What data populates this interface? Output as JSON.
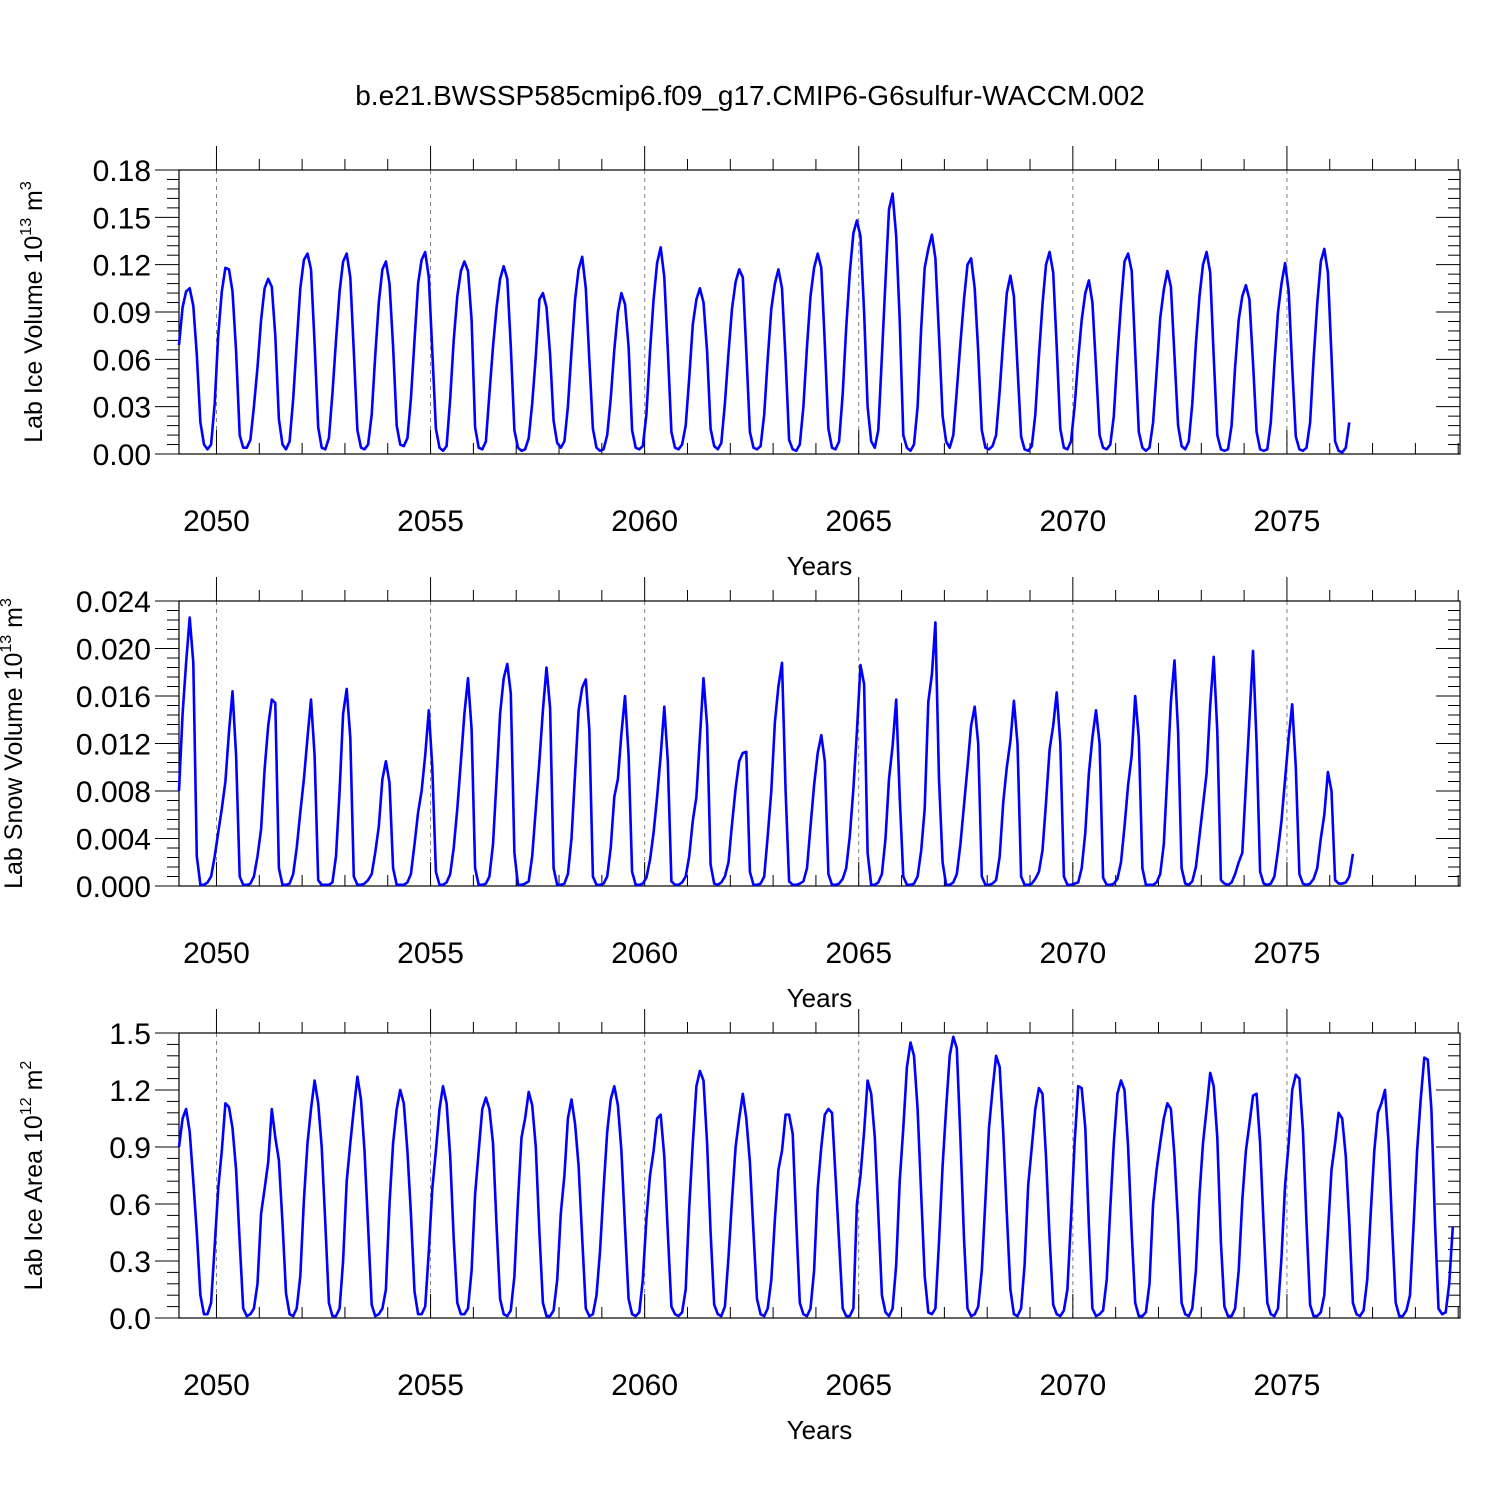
{
  "title": "b.e21.BWSSP585cmip6.f09_g17.CMIP6-G6sulfur-WACCM.002",
  "colors": {
    "line": "#0000ff",
    "axis": "#000000",
    "ref": "#808080"
  },
  "chart_data": [
    {
      "type": "line",
      "ylabel_main": "Lab Ice Volume 10",
      "ylabel_sup": "13",
      "ylabel_unit": " m",
      "ylabel_unit_sup": "3",
      "xlabel": "Years",
      "xlim": [
        2049.125,
        2079.042
      ],
      "ylim": [
        0,
        0.18
      ],
      "yticks": [
        "0.00",
        "0.03",
        "0.06",
        "0.09",
        "0.12",
        "0.15",
        "0.18"
      ],
      "ytick_values": [
        0,
        0.03,
        0.06,
        0.09,
        0.12,
        0.15,
        0.18
      ],
      "xticks": [
        "2050",
        "2055",
        "2060",
        "2065",
        "2070",
        "2075"
      ],
      "xtick_values": [
        2050,
        2055,
        2060,
        2065,
        2070,
        2075
      ],
      "x_start": 2049.125,
      "x_step": 0.08333,
      "values": [
        0.069,
        0.093,
        0.103,
        0.105,
        0.094,
        0.063,
        0.02,
        0.006,
        0.003,
        0.006,
        0.032,
        0.075,
        0.103,
        0.118,
        0.117,
        0.103,
        0.065,
        0.012,
        0.004,
        0.004,
        0.009,
        0.03,
        0.055,
        0.085,
        0.105,
        0.111,
        0.106,
        0.075,
        0.022,
        0.006,
        0.003,
        0.008,
        0.035,
        0.07,
        0.105,
        0.123,
        0.127,
        0.117,
        0.07,
        0.017,
        0.004,
        0.003,
        0.01,
        0.038,
        0.072,
        0.103,
        0.122,
        0.127,
        0.112,
        0.065,
        0.015,
        0.004,
        0.003,
        0.006,
        0.025,
        0.062,
        0.096,
        0.117,
        0.122,
        0.108,
        0.068,
        0.018,
        0.006,
        0.005,
        0.01,
        0.035,
        0.072,
        0.108,
        0.123,
        0.128,
        0.112,
        0.065,
        0.016,
        0.004,
        0.002,
        0.005,
        0.035,
        0.072,
        0.1,
        0.116,
        0.122,
        0.116,
        0.085,
        0.017,
        0.004,
        0.003,
        0.008,
        0.038,
        0.068,
        0.093,
        0.111,
        0.119,
        0.111,
        0.068,
        0.015,
        0.004,
        0.002,
        0.003,
        0.01,
        0.032,
        0.062,
        0.098,
        0.102,
        0.093,
        0.063,
        0.021,
        0.007,
        0.004,
        0.008,
        0.03,
        0.065,
        0.098,
        0.117,
        0.125,
        0.105,
        0.06,
        0.016,
        0.004,
        0.002,
        0.003,
        0.012,
        0.035,
        0.066,
        0.09,
        0.102,
        0.095,
        0.068,
        0.015,
        0.004,
        0.003,
        0.005,
        0.025,
        0.065,
        0.098,
        0.121,
        0.131,
        0.112,
        0.066,
        0.014,
        0.004,
        0.003,
        0.006,
        0.018,
        0.048,
        0.082,
        0.098,
        0.105,
        0.096,
        0.065,
        0.016,
        0.005,
        0.003,
        0.007,
        0.032,
        0.064,
        0.092,
        0.109,
        0.117,
        0.112,
        0.065,
        0.014,
        0.004,
        0.003,
        0.005,
        0.025,
        0.06,
        0.092,
        0.108,
        0.117,
        0.105,
        0.06,
        0.009,
        0.003,
        0.002,
        0.006,
        0.03,
        0.068,
        0.1,
        0.118,
        0.127,
        0.118,
        0.07,
        0.016,
        0.004,
        0.003,
        0.008,
        0.038,
        0.08,
        0.115,
        0.14,
        0.148,
        0.138,
        0.09,
        0.03,
        0.008,
        0.004,
        0.015,
        0.062,
        0.11,
        0.155,
        0.165,
        0.138,
        0.085,
        0.012,
        0.004,
        0.002,
        0.006,
        0.03,
        0.08,
        0.118,
        0.13,
        0.139,
        0.124,
        0.075,
        0.024,
        0.008,
        0.004,
        0.012,
        0.04,
        0.07,
        0.098,
        0.12,
        0.124,
        0.105,
        0.065,
        0.015,
        0.004,
        0.003,
        0.005,
        0.012,
        0.04,
        0.072,
        0.102,
        0.113,
        0.1,
        0.055,
        0.011,
        0.003,
        0.002,
        0.005,
        0.025,
        0.062,
        0.095,
        0.12,
        0.128,
        0.115,
        0.068,
        0.016,
        0.004,
        0.003,
        0.008,
        0.03,
        0.06,
        0.085,
        0.102,
        0.11,
        0.096,
        0.055,
        0.012,
        0.004,
        0.003,
        0.006,
        0.024,
        0.062,
        0.095,
        0.122,
        0.127,
        0.116,
        0.065,
        0.014,
        0.004,
        0.002,
        0.004,
        0.02,
        0.052,
        0.086,
        0.104,
        0.116,
        0.106,
        0.062,
        0.018,
        0.005,
        0.003,
        0.008,
        0.032,
        0.07,
        0.1,
        0.12,
        0.128,
        0.115,
        0.062,
        0.012,
        0.003,
        0.002,
        0.003,
        0.018,
        0.055,
        0.085,
        0.1,
        0.107,
        0.098,
        0.058,
        0.014,
        0.003,
        0.002,
        0.003,
        0.02,
        0.057,
        0.09,
        0.108,
        0.121,
        0.103,
        0.055,
        0.011,
        0.003,
        0.002,
        0.004,
        0.02,
        0.06,
        0.095,
        0.122,
        0.13,
        0.115,
        0.062,
        0.008,
        0.002,
        0.001,
        0.004,
        0.02
      ]
    },
    {
      "type": "line",
      "ylabel_main": "Lab Snow Volume 10",
      "ylabel_sup": "13",
      "ylabel_unit": " m",
      "ylabel_unit_sup": "3",
      "xlabel": "Years",
      "xlim": [
        2049.125,
        2079.042
      ],
      "ylim": [
        0,
        0.024
      ],
      "yticks": [
        "0.000",
        "0.004",
        "0.008",
        "0.012",
        "0.016",
        "0.020",
        "0.024"
      ],
      "ytick_values": [
        0,
        0.004,
        0.008,
        0.012,
        0.016,
        0.02,
        0.024
      ],
      "xticks": [
        "2050",
        "2055",
        "2060",
        "2065",
        "2070",
        "2075"
      ],
      "xtick_values": [
        2050,
        2055,
        2060,
        2065,
        2070,
        2075
      ],
      "x_start": 2049.125,
      "x_step": 0.08333,
      "values": [
        0.008,
        0.0145,
        0.0188,
        0.0226,
        0.0188,
        0.0025,
        0.0001,
        0.0001,
        0.0003,
        0.0008,
        0.0025,
        0.0045,
        0.0065,
        0.0088,
        0.013,
        0.0164,
        0.011,
        0.0008,
        0.0001,
        0.0001,
        0.0002,
        0.0008,
        0.0025,
        0.0048,
        0.0098,
        0.0135,
        0.0157,
        0.0154,
        0.0015,
        0.0001,
        0.0001,
        0.0002,
        0.001,
        0.0032,
        0.0062,
        0.009,
        0.0125,
        0.0157,
        0.011,
        0.0005,
        0.0001,
        0.0001,
        0.0001,
        0.0003,
        0.0025,
        0.008,
        0.0145,
        0.0166,
        0.0125,
        0.0008,
        0.0001,
        0.0001,
        0.0002,
        0.0005,
        0.001,
        0.0028,
        0.005,
        0.009,
        0.0105,
        0.0087,
        0.0015,
        0.0001,
        0.0001,
        0.0001,
        0.0003,
        0.001,
        0.0035,
        0.0062,
        0.008,
        0.011,
        0.0148,
        0.01,
        0.0012,
        0.0001,
        0.0001,
        0.0003,
        0.001,
        0.0032,
        0.0065,
        0.0105,
        0.0145,
        0.0175,
        0.0132,
        0.0015,
        0.0001,
        0.0001,
        0.0002,
        0.0008,
        0.0035,
        0.009,
        0.0145,
        0.0175,
        0.0187,
        0.0162,
        0.0028,
        0.0001,
        0.0001,
        0.0002,
        0.0004,
        0.0025,
        0.0065,
        0.0105,
        0.0148,
        0.0184,
        0.015,
        0.0015,
        0.0001,
        0.0001,
        0.0002,
        0.001,
        0.004,
        0.0095,
        0.0148,
        0.0167,
        0.0174,
        0.0132,
        0.0008,
        0.0001,
        0.0001,
        0.0002,
        0.0008,
        0.0032,
        0.0075,
        0.009,
        0.0128,
        0.016,
        0.011,
        0.0012,
        0.0001,
        0.0001,
        0.0002,
        0.0007,
        0.0022,
        0.0045,
        0.0075,
        0.011,
        0.0151,
        0.0105,
        0.0004,
        0.0001,
        0.0001,
        0.0003,
        0.0008,
        0.0025,
        0.0055,
        0.0075,
        0.0125,
        0.0175,
        0.0135,
        0.0018,
        0.0002,
        0.0001,
        0.0003,
        0.0008,
        0.002,
        0.0052,
        0.0082,
        0.0105,
        0.0112,
        0.0113,
        0.0012,
        0.0001,
        0.0001,
        0.0002,
        0.0008,
        0.0042,
        0.008,
        0.0138,
        0.0168,
        0.0188,
        0.008,
        0.0004,
        0.0001,
        0.0001,
        0.0002,
        0.0004,
        0.0015,
        0.005,
        0.0085,
        0.0112,
        0.0127,
        0.0105,
        0.001,
        0.0001,
        0.0001,
        0.0002,
        0.0006,
        0.0015,
        0.0042,
        0.0082,
        0.013,
        0.0186,
        0.017,
        0.0028,
        0.0001,
        0.0001,
        0.0003,
        0.001,
        0.004,
        0.009,
        0.0118,
        0.0157,
        0.0075,
        0.0008,
        0.0001,
        0.0001,
        0.0002,
        0.0008,
        0.003,
        0.0065,
        0.0155,
        0.0178,
        0.0222,
        0.009,
        0.002,
        0.0001,
        0.0001,
        0.0003,
        0.001,
        0.0035,
        0.0068,
        0.01,
        0.0135,
        0.0151,
        0.012,
        0.0008,
        0.0001,
        0.0001,
        0.0002,
        0.0005,
        0.0025,
        0.007,
        0.01,
        0.0122,
        0.0156,
        0.012,
        0.0008,
        0.0001,
        0.0001,
        0.0002,
        0.0006,
        0.0012,
        0.003,
        0.007,
        0.0115,
        0.0135,
        0.0163,
        0.012,
        0.0008,
        0.0001,
        0.0001,
        0.0002,
        0.0003,
        0.0015,
        0.0045,
        0.0095,
        0.0125,
        0.0148,
        0.012,
        0.0007,
        0.0001,
        0.0001,
        0.0002,
        0.0006,
        0.002,
        0.005,
        0.0085,
        0.011,
        0.016,
        0.0125,
        0.0015,
        0.0001,
        0.0001,
        0.0001,
        0.0003,
        0.001,
        0.0035,
        0.0095,
        0.0155,
        0.019,
        0.013,
        0.0015,
        0.0002,
        0.0001,
        0.0004,
        0.0016,
        0.0042,
        0.0068,
        0.0095,
        0.0152,
        0.0193,
        0.013,
        0.0005,
        0.0002,
        0.0001,
        0.0003,
        0.001,
        0.002,
        0.0028,
        0.0085,
        0.014,
        0.0198,
        0.012,
        0.0012,
        0.0002,
        0.0001,
        0.0002,
        0.0008,
        0.003,
        0.0055,
        0.009,
        0.0125,
        0.0153,
        0.01,
        0.001,
        0.0002,
        0.0001,
        0.0002,
        0.0006,
        0.0015,
        0.004,
        0.006,
        0.0096,
        0.008,
        0.0005,
        0.0002,
        0.0002,
        0.0003,
        0.0008,
        0.0027
      ]
    },
    {
      "type": "line",
      "ylabel_main": "Lab Ice Area 10",
      "ylabel_sup": "12",
      "ylabel_unit": " m",
      "ylabel_unit_sup": "2",
      "xlabel": "Years",
      "xlim": [
        2049.125,
        2079.042
      ],
      "ylim": [
        0,
        1.5
      ],
      "yticks": [
        "0.0",
        "0.3",
        "0.6",
        "0.9",
        "1.2",
        "1.5"
      ],
      "ytick_values": [
        0,
        0.3,
        0.6,
        0.9,
        1.2,
        1.5
      ],
      "xticks": [
        "2050",
        "2055",
        "2060",
        "2065",
        "2070",
        "2075"
      ],
      "xtick_values": [
        2050,
        2055,
        2060,
        2065,
        2070,
        2075
      ],
      "x_start": 2049.125,
      "x_step": 0.08333,
      "values": [
        0.9,
        1.05,
        1.1,
        0.98,
        0.72,
        0.45,
        0.12,
        0.02,
        0.02,
        0.08,
        0.38,
        0.68,
        0.88,
        1.13,
        1.11,
        1.0,
        0.78,
        0.4,
        0.05,
        0.01,
        0.02,
        0.05,
        0.18,
        0.55,
        0.68,
        0.82,
        1.1,
        0.95,
        0.83,
        0.5,
        0.13,
        0.02,
        0.01,
        0.05,
        0.22,
        0.62,
        0.92,
        1.1,
        1.25,
        1.13,
        0.9,
        0.5,
        0.08,
        0.01,
        0.01,
        0.05,
        0.3,
        0.72,
        0.92,
        1.1,
        1.27,
        1.15,
        0.88,
        0.48,
        0.07,
        0.01,
        0.02,
        0.05,
        0.15,
        0.6,
        0.92,
        1.1,
        1.2,
        1.13,
        0.88,
        0.55,
        0.14,
        0.02,
        0.02,
        0.06,
        0.35,
        0.68,
        0.88,
        1.1,
        1.22,
        1.13,
        0.85,
        0.42,
        0.08,
        0.02,
        0.02,
        0.05,
        0.25,
        0.65,
        0.88,
        1.1,
        1.16,
        1.1,
        0.92,
        0.48,
        0.1,
        0.02,
        0.01,
        0.04,
        0.22,
        0.62,
        0.95,
        1.05,
        1.19,
        1.12,
        0.9,
        0.45,
        0.08,
        0.01,
        0.01,
        0.04,
        0.2,
        0.55,
        0.75,
        1.05,
        1.15,
        1.02,
        0.8,
        0.42,
        0.05,
        0.01,
        0.02,
        0.12,
        0.35,
        0.68,
        0.98,
        1.15,
        1.22,
        1.12,
        0.88,
        0.48,
        0.1,
        0.02,
        0.01,
        0.03,
        0.2,
        0.52,
        0.75,
        0.88,
        1.05,
        1.07,
        0.85,
        0.45,
        0.06,
        0.02,
        0.01,
        0.03,
        0.15,
        0.58,
        0.92,
        1.22,
        1.3,
        1.25,
        0.92,
        0.45,
        0.07,
        0.02,
        0.01,
        0.06,
        0.32,
        0.62,
        0.9,
        1.05,
        1.18,
        1.05,
        0.82,
        0.45,
        0.1,
        0.02,
        0.01,
        0.05,
        0.2,
        0.52,
        0.78,
        0.88,
        1.07,
        1.07,
        0.97,
        0.5,
        0.08,
        0.02,
        0.01,
        0.05,
        0.25,
        0.68,
        0.9,
        1.07,
        1.1,
        1.08,
        0.75,
        0.4,
        0.05,
        0.01,
        0.01,
        0.05,
        0.6,
        0.75,
        0.98,
        1.25,
        1.18,
        0.95,
        0.55,
        0.12,
        0.03,
        0.01,
        0.05,
        0.28,
        0.72,
        1.0,
        1.32,
        1.45,
        1.38,
        1.1,
        0.65,
        0.22,
        0.03,
        0.02,
        0.05,
        0.4,
        0.8,
        1.1,
        1.38,
        1.48,
        1.42,
        0.95,
        0.42,
        0.05,
        0.01,
        0.02,
        0.06,
        0.25,
        0.62,
        1.0,
        1.2,
        1.38,
        1.32,
        0.98,
        0.55,
        0.15,
        0.02,
        0.01,
        0.05,
        0.28,
        0.7,
        0.9,
        1.1,
        1.21,
        1.18,
        0.85,
        0.42,
        0.07,
        0.02,
        0.01,
        0.04,
        0.15,
        0.52,
        0.92,
        1.22,
        1.21,
        1.0,
        0.48,
        0.05,
        0.01,
        0.02,
        0.04,
        0.2,
        0.58,
        0.92,
        1.18,
        1.25,
        1.2,
        0.9,
        0.45,
        0.08,
        0.01,
        0.01,
        0.03,
        0.18,
        0.6,
        0.78,
        0.92,
        1.05,
        1.13,
        1.1,
        0.85,
        0.5,
        0.08,
        0.02,
        0.01,
        0.05,
        0.25,
        0.65,
        0.92,
        1.1,
        1.29,
        1.22,
        0.95,
        0.4,
        0.06,
        0.01,
        0.01,
        0.05,
        0.25,
        0.62,
        0.88,
        1.02,
        1.17,
        1.18,
        0.92,
        0.48,
        0.08,
        0.02,
        0.01,
        0.05,
        0.32,
        0.7,
        0.92,
        1.2,
        1.28,
        1.26,
        0.99,
        0.5,
        0.07,
        0.01,
        0.01,
        0.03,
        0.12,
        0.45,
        0.78,
        0.92,
        1.08,
        1.05,
        0.85,
        0.5,
        0.08,
        0.02,
        0.01,
        0.04,
        0.2,
        0.55,
        0.88,
        1.08,
        1.13,
        1.2,
        0.92,
        0.48,
        0.08,
        0.01,
        0.01,
        0.04,
        0.12,
        0.48,
        0.88,
        1.15,
        1.37,
        1.36,
        1.1,
        0.5,
        0.05,
        0.02,
        0.03,
        0.18,
        0.48
      ]
    }
  ]
}
